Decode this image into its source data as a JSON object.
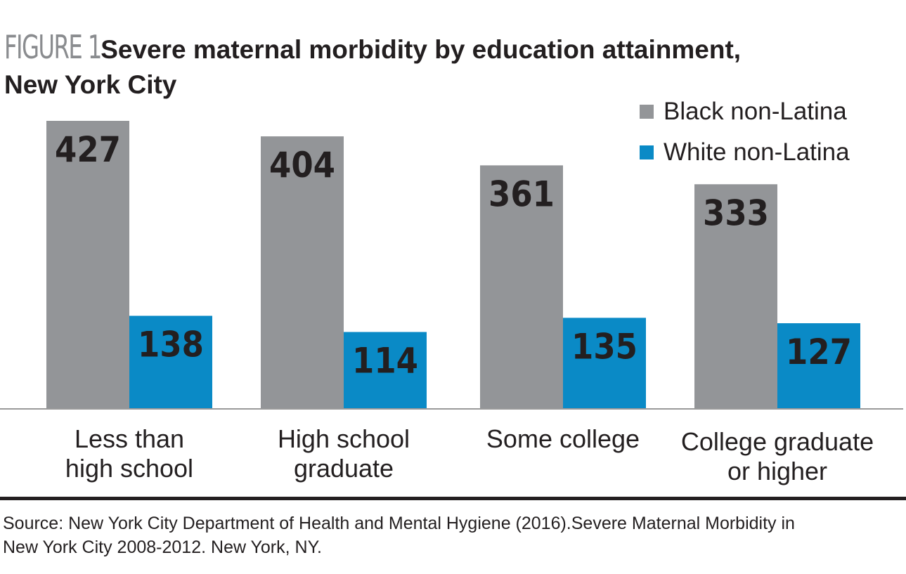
{
  "figure_label": "FIGURE 1",
  "title_line1": "Severe maternal morbidity by education attainment,",
  "title_line2": "New York City",
  "legend": [
    {
      "label": "Black non-Latina",
      "color": "#939598"
    },
    {
      "label": "White non-Latina",
      "color": "#0a8ac6"
    }
  ],
  "source_line1": "Source: New York City Department of Health and Mental Hygiene (2016).Severe Maternal Morbidity in",
  "source_line2": "New York City 2008-2012. New York, NY.",
  "chart_data": {
    "type": "bar",
    "title": "Severe maternal morbidity by education attainment, New York City",
    "categories": [
      [
        "Less than",
        "high school"
      ],
      [
        "High school",
        "graduate"
      ],
      [
        "Some college"
      ],
      [
        "College graduate",
        "or higher"
      ]
    ],
    "series": [
      {
        "name": "Black non-Latina",
        "color": "#939598",
        "values": [
          427,
          404,
          361,
          333
        ]
      },
      {
        "name": "White non-Latina",
        "color": "#0a8ac6",
        "values": [
          138,
          114,
          135,
          127
        ]
      }
    ],
    "xlabel": "",
    "ylabel": "",
    "ylim": [
      0,
      427
    ],
    "grid": false,
    "legend_position": "top-right"
  }
}
